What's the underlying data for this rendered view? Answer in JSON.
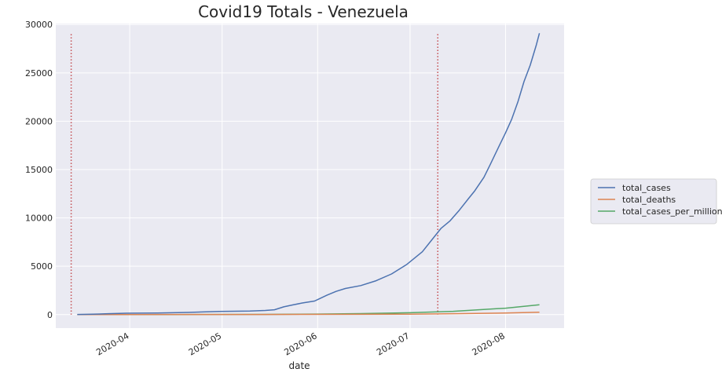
{
  "chart_data": {
    "type": "line",
    "title": "Covid19  Totals - Venezuela",
    "xlabel": "date",
    "ylabel": "",
    "x_range": [
      "2020-03-08",
      "2020-08-20"
    ],
    "ylim": [
      -1400,
      30100
    ],
    "y_ticks": [
      0,
      5000,
      10000,
      15000,
      20000,
      25000,
      30000
    ],
    "x_ticks": [
      {
        "date": "2020-04-01",
        "label": "2020-04"
      },
      {
        "date": "2020-05-01",
        "label": "2020-05"
      },
      {
        "date": "2020-06-01",
        "label": "2020-06"
      },
      {
        "date": "2020-07-01",
        "label": "2020-07"
      },
      {
        "date": "2020-08-01",
        "label": "2020-08"
      }
    ],
    "grid": true,
    "legend_position": "right",
    "vlines": [
      {
        "date": "2020-03-13",
        "y_top": 29000,
        "color": "#c44e52",
        "style": "dotted"
      },
      {
        "date": "2020-07-10",
        "y_top": 29000,
        "color": "#c44e52",
        "style": "dotted"
      }
    ],
    "series": [
      {
        "name": "total_cases",
        "color": "#4c72b0",
        "points": [
          [
            "2020-03-15",
            10
          ],
          [
            "2020-03-20",
            40
          ],
          [
            "2020-03-25",
            90
          ],
          [
            "2020-03-31",
            140
          ],
          [
            "2020-04-10",
            170
          ],
          [
            "2020-04-20",
            220
          ],
          [
            "2020-04-30",
            330
          ],
          [
            "2020-05-10",
            370
          ],
          [
            "2020-05-15",
            430
          ],
          [
            "2020-05-18",
            500
          ],
          [
            "2020-05-21",
            800
          ],
          [
            "2020-05-24",
            1000
          ],
          [
            "2020-05-27",
            1200
          ],
          [
            "2020-05-31",
            1400
          ],
          [
            "2020-06-04",
            2000
          ],
          [
            "2020-06-07",
            2400
          ],
          [
            "2020-06-10",
            2700
          ],
          [
            "2020-06-15",
            3000
          ],
          [
            "2020-06-20",
            3500
          ],
          [
            "2020-06-25",
            4200
          ],
          [
            "2020-06-30",
            5200
          ],
          [
            "2020-07-05",
            6500
          ],
          [
            "2020-07-08",
            7700
          ],
          [
            "2020-07-11",
            8900
          ],
          [
            "2020-07-14",
            9700
          ],
          [
            "2020-07-17",
            10800
          ],
          [
            "2020-07-20",
            12000
          ],
          [
            "2020-07-22",
            12800
          ],
          [
            "2020-07-25",
            14200
          ],
          [
            "2020-07-27",
            15500
          ],
          [
            "2020-07-30",
            17500
          ],
          [
            "2020-08-01",
            18800
          ],
          [
            "2020-08-03",
            20200
          ],
          [
            "2020-08-05",
            22000
          ],
          [
            "2020-08-07",
            24100
          ],
          [
            "2020-08-09",
            25800
          ],
          [
            "2020-08-11",
            27900
          ],
          [
            "2020-08-12",
            29100
          ]
        ]
      },
      {
        "name": "total_deaths",
        "color": "#dd8452",
        "points": [
          [
            "2020-03-15",
            0
          ],
          [
            "2020-04-15",
            9
          ],
          [
            "2020-05-15",
            11
          ],
          [
            "2020-06-15",
            30
          ],
          [
            "2020-07-01",
            45
          ],
          [
            "2020-07-15",
            90
          ],
          [
            "2020-08-01",
            160
          ],
          [
            "2020-08-12",
            250
          ]
        ]
      },
      {
        "name": "total_cases_per_million",
        "color": "#55a868",
        "points": [
          [
            "2020-03-15",
            0
          ],
          [
            "2020-04-15",
            7
          ],
          [
            "2020-05-15",
            17
          ],
          [
            "2020-06-01",
            50
          ],
          [
            "2020-06-15",
            100
          ],
          [
            "2020-07-01",
            190
          ],
          [
            "2020-07-15",
            340
          ],
          [
            "2020-08-01",
            660
          ],
          [
            "2020-08-12",
            1020
          ]
        ]
      }
    ]
  }
}
